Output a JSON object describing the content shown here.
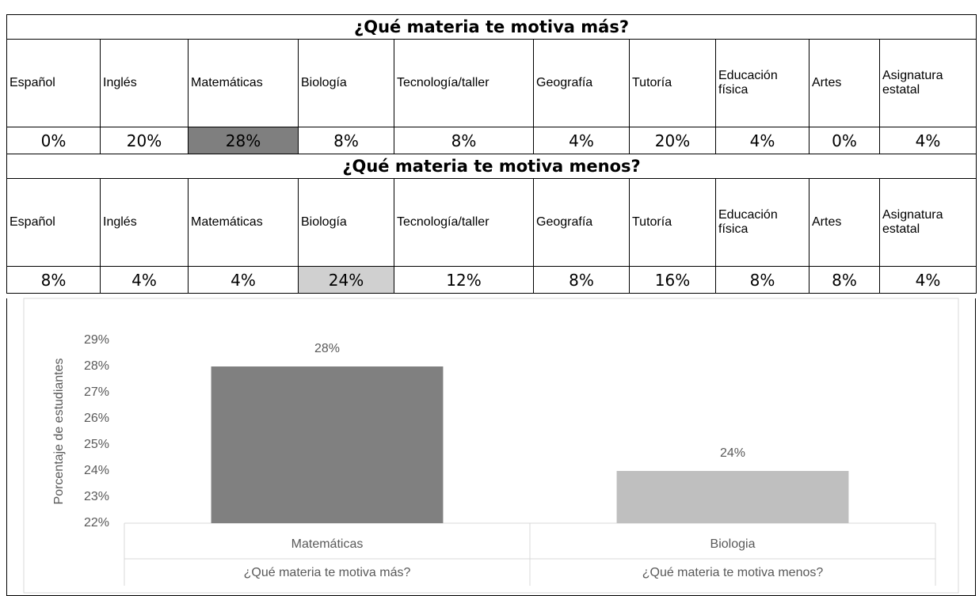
{
  "tables": [
    {
      "title": "¿Qué materia te motiva más?",
      "columns": [
        "Español",
        "Inglés",
        "Matemáticas",
        "Biología",
        "Tecnología/taller",
        "Geografía",
        "Tutoría",
        "Educación física",
        "Artes",
        "Asignatura estatal"
      ],
      "values": [
        "0%",
        "20%",
        "28%",
        "8%",
        "8%",
        "4%",
        "20%",
        "4%",
        "0%",
        "4%"
      ],
      "highlight": {
        "index": 2,
        "color": "#7f7f7f"
      }
    },
    {
      "title": "¿Qué materia te motiva menos?",
      "columns": [
        "Español",
        "Inglés",
        "Matemáticas",
        "Biología",
        "Tecnología/taller",
        "Geografía",
        "Tutoría",
        "Educación física",
        "Artes",
        "Asignatura estatal"
      ],
      "values": [
        "8%",
        "4%",
        "4%",
        "24%",
        "12%",
        "8%",
        "16%",
        "8%",
        "8%",
        "4%"
      ],
      "highlight": {
        "index": 3,
        "color": "#d0d0d0"
      }
    }
  ],
  "chart_data": {
    "type": "bar",
    "ylabel": "Porcentaje de estudiantes",
    "categories": [
      "Matemáticas",
      "Biologia"
    ],
    "groups": [
      "¿Qué materia te motiva más?",
      "¿Qué materia te motiva menos?"
    ],
    "values": [
      28,
      24
    ],
    "value_labels": [
      "28%",
      "24%"
    ],
    "colors": [
      "#808080",
      "#bfbfbf"
    ],
    "ylim": [
      22,
      29
    ],
    "yticks": [
      {
        "value": 22,
        "label": "22%"
      },
      {
        "value": 23,
        "label": "23%"
      },
      {
        "value": 24,
        "label": "24%"
      },
      {
        "value": 25,
        "label": "25%"
      },
      {
        "value": 26,
        "label": "26%"
      },
      {
        "value": 27,
        "label": "27%"
      },
      {
        "value": 28,
        "label": "28%"
      },
      {
        "value": 29,
        "label": "29%"
      }
    ],
    "grid": false
  }
}
